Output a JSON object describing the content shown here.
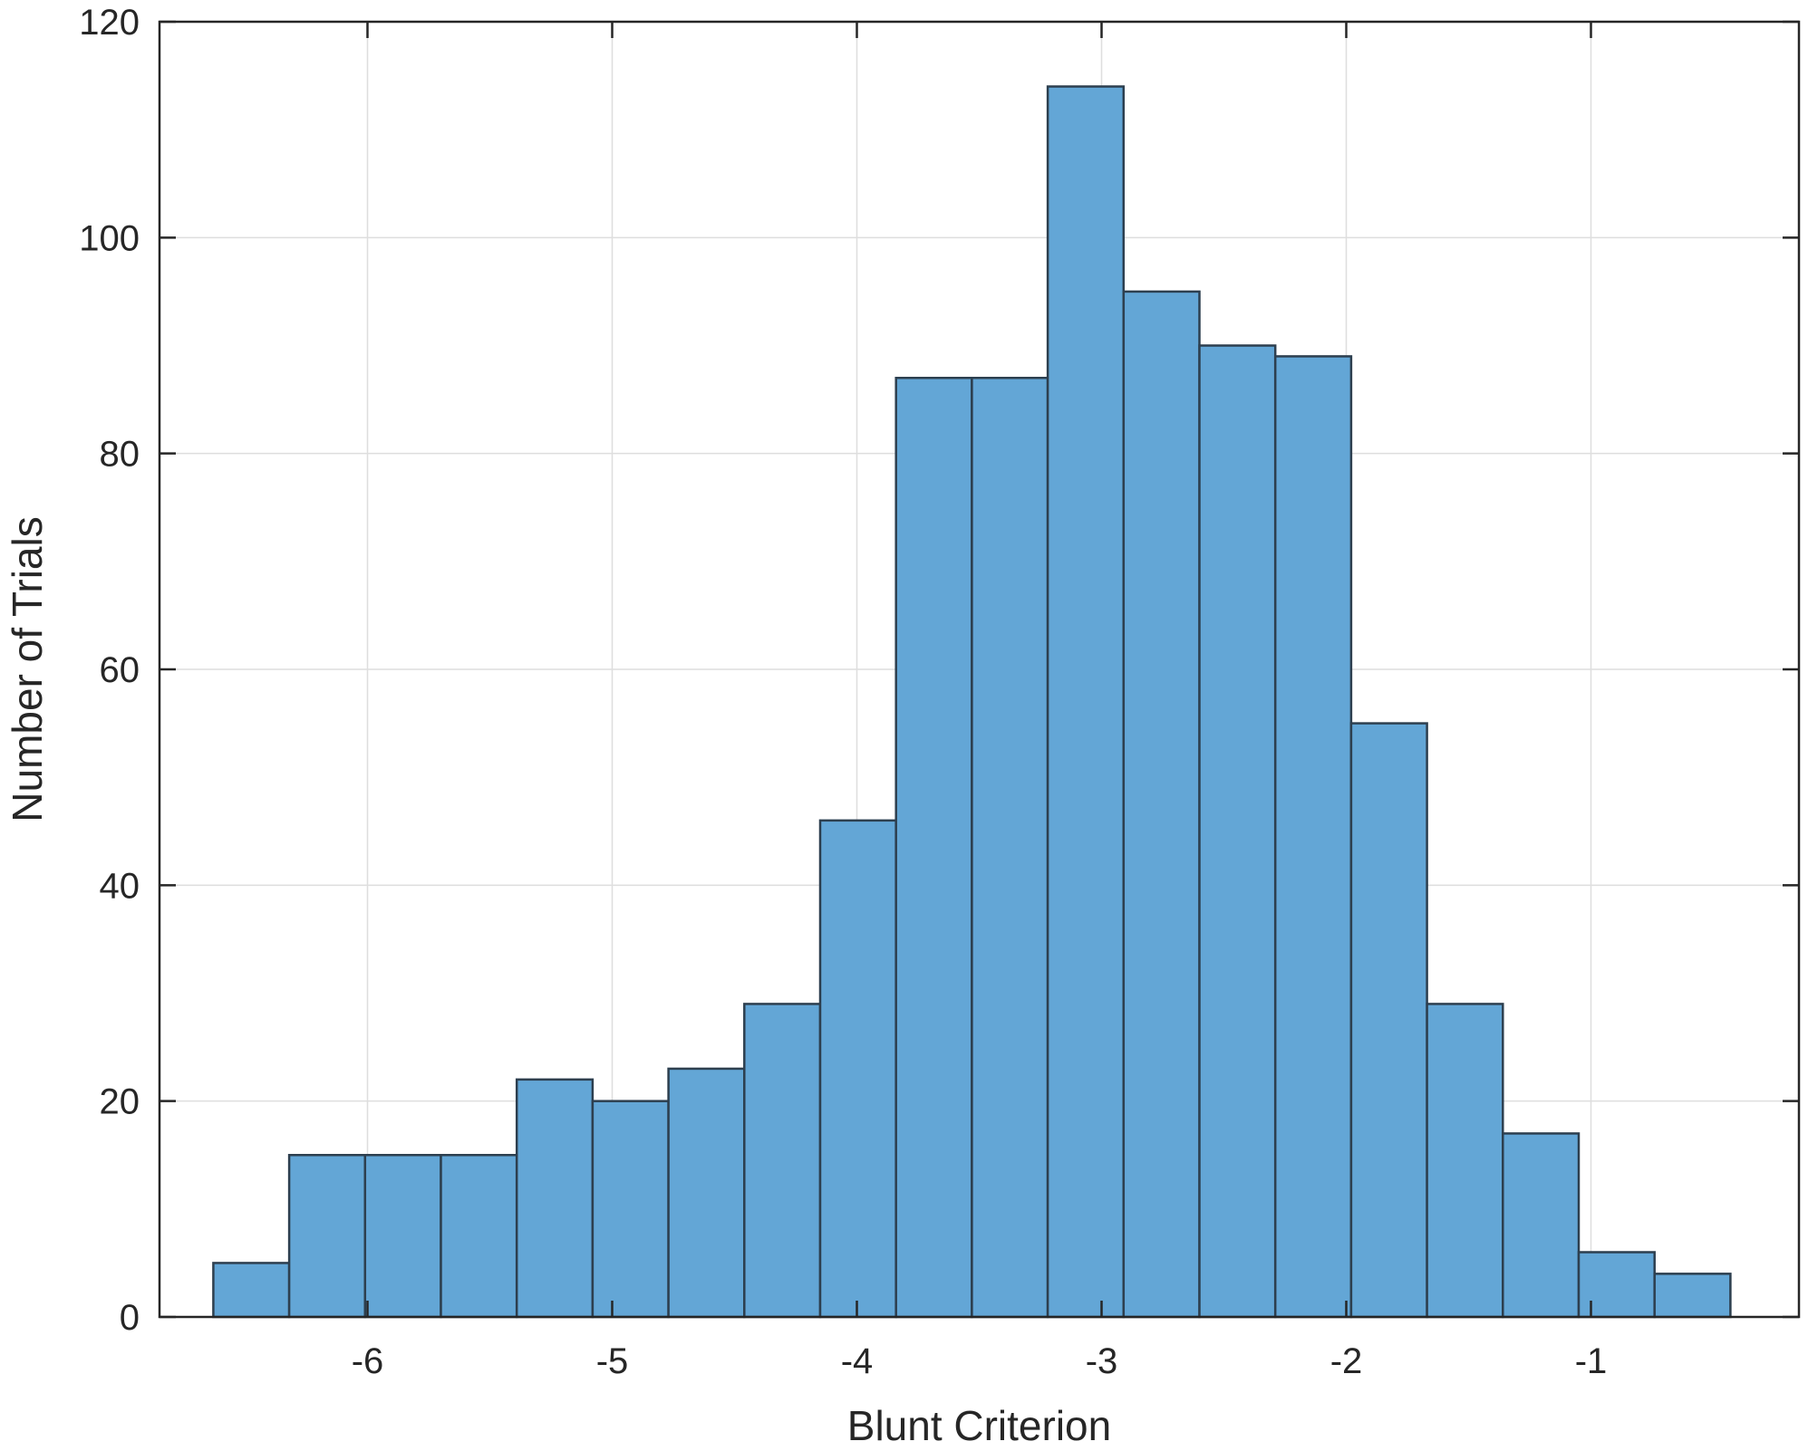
{
  "chart_data": {
    "type": "bar",
    "subtype": "histogram",
    "title": "",
    "xlabel": "Blunt Criterion",
    "ylabel": "Number of Trials",
    "xlim": [
      -6.85,
      -0.15
    ],
    "ylim": [
      0,
      120
    ],
    "xticks": [
      -6,
      -5,
      -4,
      -3,
      -2,
      -1
    ],
    "yticks": [
      0,
      20,
      40,
      60,
      80,
      100,
      120
    ],
    "grid": true,
    "bar_color": "#63a6d6",
    "edge_color": "#2d3f4f",
    "bin_edges": [
      -6.63,
      -6.32,
      -6.01,
      -5.7,
      -5.39,
      -5.08,
      -4.77,
      -4.46,
      -4.15,
      -3.84,
      -3.53,
      -3.22,
      -2.91,
      -2.6,
      -2.29,
      -1.98,
      -1.67,
      -1.36,
      -1.05,
      -0.74,
      -0.43
    ],
    "counts": [
      5,
      15,
      15,
      15,
      22,
      20,
      23,
      29,
      46,
      87,
      87,
      114,
      95,
      90,
      89,
      55,
      29,
      17,
      6,
      4
    ]
  }
}
